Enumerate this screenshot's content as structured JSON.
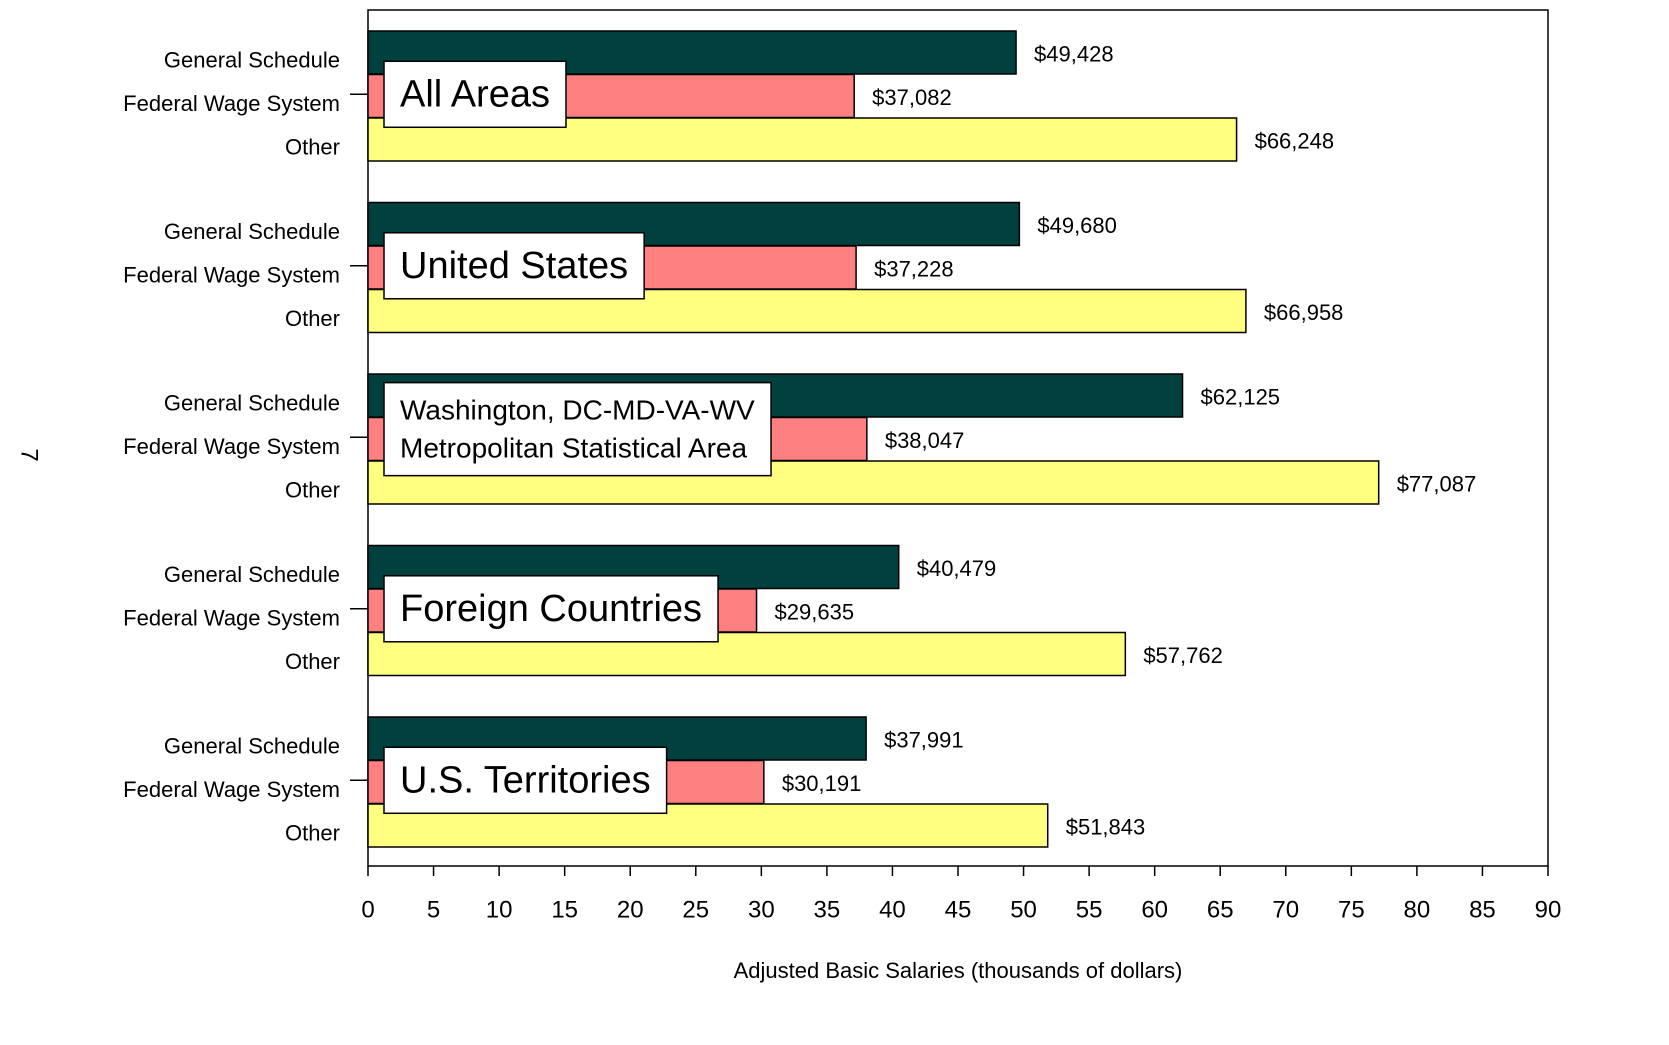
{
  "page_number": "7",
  "chart_data": {
    "type": "bar",
    "orientation": "horizontal",
    "x_label": "Adjusted Basic Salaries (thousands of dollars)",
    "categories": [
      "All Areas",
      "United States",
      "Washington, DC-MD-VA-WV Metropolitan Statistical Area",
      "Foreign Countries",
      "U.S. Territories"
    ],
    "series": [
      {
        "name": "General Schedule",
        "color": "#00403f",
        "values": [
          49.428,
          49.68,
          62.125,
          40.479,
          37.991
        ],
        "value_labels": [
          "$49,428",
          "$49,680",
          "$62,125",
          "$40,479",
          "$37,991"
        ]
      },
      {
        "name": "Federal Wage System",
        "color": "#ff8080",
        "values": [
          37.082,
          37.228,
          38.047,
          29.635,
          30.191
        ],
        "value_labels": [
          "$37,082",
          "$37,228",
          "$38,047",
          "$29,635",
          "$30,191"
        ]
      },
      {
        "name": "Other",
        "color": "#ffff80",
        "values": [
          66.248,
          66.958,
          77.087,
          57.762,
          51.843
        ],
        "value_labels": [
          "$66,248",
          "$66,958",
          "$77,087",
          "$57,762",
          "$51,843"
        ]
      }
    ],
    "xlim": [
      0,
      90
    ],
    "xticks": [
      0,
      5,
      10,
      15,
      20,
      25,
      30,
      35,
      40,
      45,
      50,
      55,
      60,
      65,
      70,
      75,
      80,
      85,
      90
    ]
  }
}
